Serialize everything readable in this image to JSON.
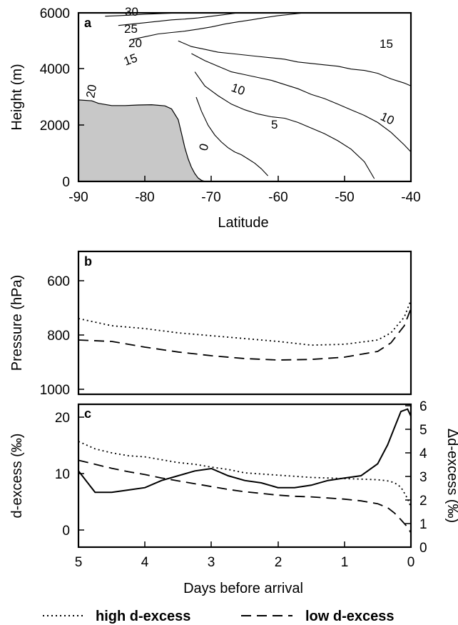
{
  "chart_data": [
    {
      "type": "contour",
      "panel_label": "a",
      "xlabel": "Latitude",
      "ylabel": "Height (m)",
      "xlim": [
        -90,
        -40
      ],
      "ylim": [
        0,
        6000
      ],
      "xticks": [
        "-90",
        "-80",
        "-70",
        "-60",
        "-50",
        "-40"
      ],
      "yticks": [
        "0",
        "2000",
        "4000",
        "6000"
      ],
      "terrain_color": "#c8c8c8",
      "terrain": {
        "x": [
          -90,
          -88,
          -87,
          -85,
          -83,
          -81,
          -79,
          -77,
          -76,
          -75,
          -74.5,
          -74,
          -73.5,
          -73,
          -72.5,
          -72,
          -71.5,
          -71
        ],
        "y": [
          2900,
          2870,
          2780,
          2700,
          2700,
          2720,
          2730,
          2690,
          2580,
          2200,
          1700,
          1200,
          800,
          500,
          280,
          120,
          40,
          0
        ]
      },
      "contour_labels": [
        "30",
        "25",
        "20",
        "15",
        "15",
        "10",
        "5",
        "10",
        "0",
        "20"
      ],
      "contours": [
        {
          "level": 0,
          "x": [
            -72.3,
            -71.5,
            -70.5,
            -69.5,
            -68.5,
            -67.5,
            -66.5,
            -65.5,
            -64.5,
            -63.5,
            -62.5,
            -61.5
          ],
          "y": [
            3000,
            2500,
            2000,
            1650,
            1400,
            1200,
            1050,
            950,
            800,
            650,
            450,
            200
          ]
        },
        {
          "level": 5,
          "x": [
            -72.5,
            -71,
            -69,
            -67,
            -65,
            -63,
            -61,
            -59,
            -57,
            -55,
            -53,
            -51,
            -49,
            -47,
            -45.5
          ],
          "y": [
            3900,
            3400,
            3050,
            2750,
            2550,
            2400,
            2300,
            2250,
            2100,
            1900,
            1700,
            1450,
            1150,
            700,
            100
          ]
        },
        {
          "level": 10,
          "x": [
            -73,
            -71,
            -69,
            -67,
            -65,
            -63,
            -61,
            -59,
            -57,
            -55,
            -53,
            -51,
            -49,
            -47,
            -45,
            -43,
            -41,
            -40
          ],
          "y": [
            4550,
            4300,
            4100,
            3900,
            3800,
            3700,
            3600,
            3450,
            3300,
            3100,
            2950,
            2750,
            2550,
            2350,
            2100,
            1750,
            1300,
            1050
          ]
        },
        {
          "level": 15,
          "x": [
            -75,
            -73,
            -71,
            -69,
            -67,
            -65,
            -63,
            -61,
            -59,
            -57,
            -55,
            -53,
            -51,
            -49,
            -47,
            -45,
            -43,
            -41,
            -40
          ],
          "y": [
            5000,
            4800,
            4700,
            4600,
            4550,
            4500,
            4450,
            4400,
            4350,
            4250,
            4200,
            4150,
            4100,
            4000,
            3950,
            3850,
            3650,
            3500,
            3400
          ]
        },
        {
          "level": 20,
          "x": [
            -82,
            -80,
            -78,
            -76,
            -74,
            -72,
            -70,
            -68,
            -66,
            -64,
            -62,
            -60,
            -58,
            -56
          ],
          "y": [
            5050,
            5150,
            5250,
            5300,
            5350,
            5420,
            5500,
            5600,
            5680,
            5750,
            5830,
            5900,
            5950,
            6000
          ]
        },
        {
          "level": 25,
          "x": [
            -84,
            -82,
            -80,
            -78,
            -76,
            -74,
            -72,
            -70,
            -68,
            -66
          ],
          "y": [
            5550,
            5600,
            5650,
            5700,
            5750,
            5780,
            5820,
            5880,
            5940,
            6000
          ]
        },
        {
          "level": 30,
          "x": [
            -86,
            -84,
            -82,
            -80,
            -78,
            -76,
            -74
          ],
          "y": [
            5880,
            5900,
            5920,
            5950,
            5970,
            5990,
            6000
          ]
        }
      ]
    },
    {
      "type": "line",
      "panel_label": "b",
      "ylabel": "Pressure (hPa)",
      "xlim": [
        5,
        0
      ],
      "ylim": [
        1000,
        500
      ],
      "yticks": [
        "600",
        "800",
        "1000"
      ],
      "x": [
        5,
        4.5,
        4,
        3.5,
        3,
        2.5,
        2,
        1.5,
        1,
        0.5,
        0.3,
        0.1,
        0
      ],
      "series": [
        {
          "name": "high d-excess",
          "style": "dotted",
          "values": [
            735,
            760,
            770,
            785,
            795,
            805,
            815,
            828,
            825,
            810,
            785,
            730,
            670
          ]
        },
        {
          "name": "low d-excess",
          "style": "dashed",
          "values": [
            810,
            815,
            835,
            852,
            865,
            875,
            880,
            878,
            870,
            850,
            820,
            760,
            700
          ]
        }
      ]
    },
    {
      "type": "line",
      "panel_label": "c",
      "xlabel": "Days before arrival",
      "ylabel": "d-excess (‰)",
      "y2label": "Δd-excess (‰)",
      "xlim": [
        5,
        0
      ],
      "ylim": [
        -3,
        22
      ],
      "y2lim": [
        0,
        6
      ],
      "xticks": [
        "5",
        "4",
        "3",
        "2",
        "1",
        "0"
      ],
      "yticks": [
        "0",
        "10",
        "20"
      ],
      "y2ticks": [
        "0",
        "1",
        "2",
        "3",
        "4",
        "5",
        "6"
      ],
      "x": [
        5,
        4.75,
        4.5,
        4.25,
        4,
        3.75,
        3.5,
        3.25,
        3,
        2.75,
        2.5,
        2.25,
        2,
        1.75,
        1.5,
        1.25,
        1,
        0.75,
        0.5,
        0.35,
        0.25,
        0.15,
        0.05,
        0
      ],
      "series": [
        {
          "name": "high d-excess",
          "style": "dotted",
          "axis": "left",
          "values": [
            15.5,
            14.2,
            13.5,
            13.0,
            12.8,
            12.3,
            11.8,
            11.5,
            11.0,
            10.6,
            10.0,
            9.8,
            9.6,
            9.4,
            9.2,
            9.1,
            9.0,
            8.9,
            8.8,
            8.6,
            8.3,
            7.5,
            5.5,
            4.0
          ]
        },
        {
          "name": "low d-excess",
          "style": "dashed",
          "axis": "left",
          "values": [
            12.2,
            11.5,
            10.8,
            10.2,
            9.7,
            9.1,
            8.6,
            8.1,
            7.6,
            7.1,
            6.7,
            6.4,
            6.1,
            5.9,
            5.8,
            5.6,
            5.4,
            5.1,
            4.6,
            3.9,
            3.0,
            1.8,
            0.5,
            -0.5
          ]
        },
        {
          "name": "Δd-excess",
          "style": "solid",
          "axis": "right",
          "values": [
            3.2,
            2.3,
            2.3,
            2.4,
            2.5,
            2.8,
            3.0,
            3.2,
            3.3,
            3.0,
            2.8,
            2.7,
            2.5,
            2.5,
            2.6,
            2.8,
            2.9,
            3.0,
            3.5,
            4.3,
            5.0,
            5.7,
            5.8,
            5.5
          ]
        }
      ]
    }
  ],
  "legend": {
    "items": [
      {
        "label": "high d-excess",
        "style": "dotted"
      },
      {
        "label": "low d-excess",
        "style": "dashed"
      }
    ]
  }
}
